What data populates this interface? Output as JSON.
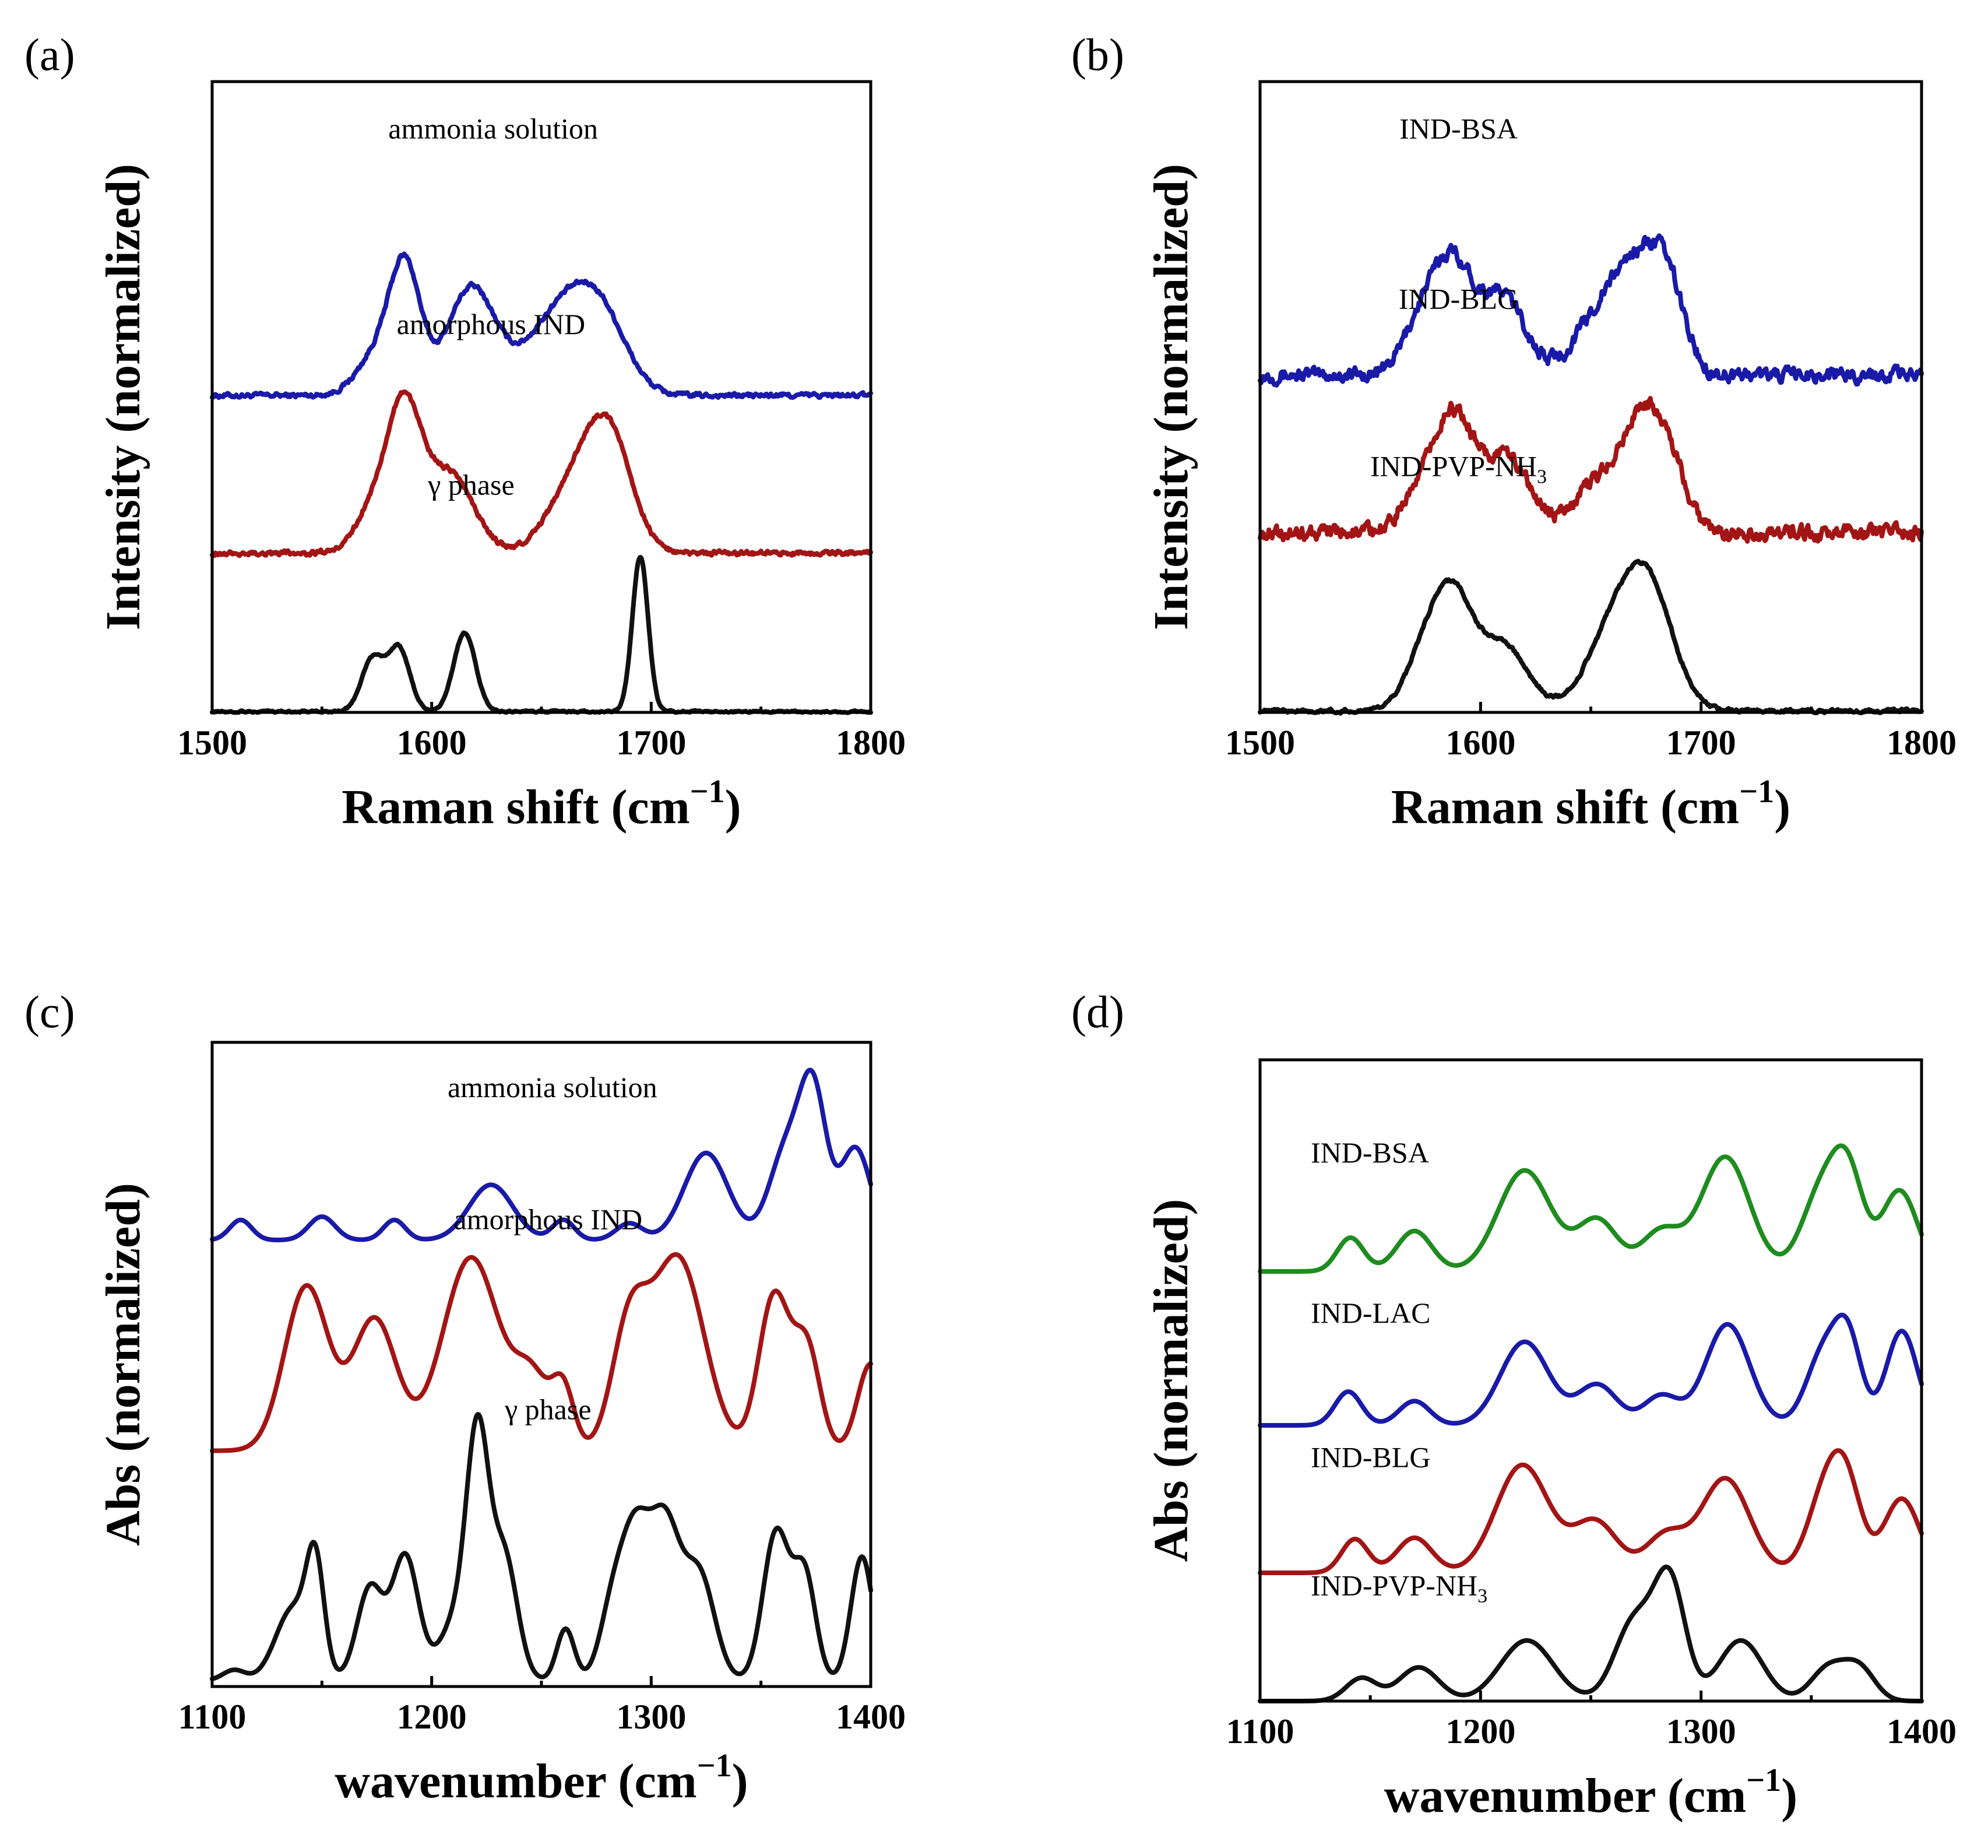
{
  "chart_data": [
    {
      "panel": "(a)",
      "type": "line",
      "xlabel": "Raman shift (cm",
      "xlabel_sup": "−1",
      "xlabel_close": ")",
      "ylabel": "Intensity (normalized)",
      "xlim": [
        1500,
        1800
      ],
      "xticks": [
        "1500",
        "1600",
        "1700",
        "1800"
      ],
      "xtick_values": [
        1500,
        1600,
        1700,
        1800
      ],
      "ylim": [
        0,
        1.0
      ],
      "series": [
        {
          "name": "ammonia solution",
          "color": "#1a1aa8",
          "offset": 0.5,
          "scale": 0.25,
          "noise": 0.004,
          "label_x": 1628,
          "label_y": 0.91,
          "baseline": 0.01,
          "peaks": [
            [
              1588,
              0.78,
              7
            ],
            [
              1575,
              0.25,
              9
            ],
            [
              1618,
              0.68,
              11
            ],
            [
              1658,
              0.5,
              15
            ],
            [
              1677,
              0.42,
              12
            ]
          ]
        },
        {
          "name": "amorphous IND",
          "color": "#a31515",
          "offset": 0.25,
          "scale": 0.25,
          "noise": 0.004,
          "label_x": 1627,
          "label_y": 0.6,
          "baseline": 0.01,
          "peaks": [
            [
              1587,
              0.9,
              8
            ],
            [
              1572,
              0.22,
              8
            ],
            [
              1608,
              0.5,
              11
            ],
            [
              1668,
              0.5,
              13
            ],
            [
              1682,
              0.55,
              10
            ]
          ]
        },
        {
          "name": "γ phase",
          "color": "#111111",
          "offset": 0.0,
          "scale": 0.25,
          "noise": 0.0015,
          "label_x": 1618,
          "label_y": 0.345,
          "baseline": 0.005,
          "peaks": [
            [
              1573,
              0.33,
              5
            ],
            [
              1585,
              0.4,
              5
            ],
            [
              1615,
              0.5,
              5
            ],
            [
              1695,
              0.98,
              3.6
            ]
          ]
        }
      ]
    },
    {
      "panel": "(b)",
      "type": "line",
      "xlabel": "Raman shift (cm",
      "xlabel_sup": "−1",
      "xlabel_close": ")",
      "ylabel": "Intensity (normalized)",
      "xlim": [
        1500,
        1800
      ],
      "xticks": [
        "1500",
        "1600",
        "1700",
        "1800"
      ],
      "xtick_values": [
        1500,
        1600,
        1700,
        1800
      ],
      "ylim": [
        0,
        1.0
      ],
      "series": [
        {
          "name": "IND-BSA",
          "color": "#1a1aa8",
          "offset": 0.52,
          "scale": 0.25,
          "noise": 0.012,
          "label_x": 1590,
          "label_y": 0.91,
          "baseline": 0.06,
          "peaks": [
            [
              1587,
              0.7,
              9
            ],
            [
              1572,
              0.28,
              8
            ],
            [
              1610,
              0.5,
              10
            ],
            [
              1655,
              0.38,
              12
            ],
            [
              1672,
              0.55,
              10
            ],
            [
              1685,
              0.48,
              8
            ]
          ]
        },
        {
          "name": "IND-BLG",
          "color": "#a31515",
          "offset": 0.27,
          "scale": 0.25,
          "noise": 0.012,
          "label_x": 1590,
          "label_y": 0.64,
          "baseline": 0.06,
          "peaks": [
            [
              1588,
              0.72,
              9
            ],
            [
              1572,
              0.25,
              8
            ],
            [
              1612,
              0.48,
              10
            ],
            [
              1655,
              0.33,
              12
            ],
            [
              1674,
              0.6,
              9
            ],
            [
              1686,
              0.35,
              8
            ]
          ]
        },
        {
          "name": "IND-PVP-NH",
          "name_sub": "3",
          "color": "#111111",
          "offset": 0.0,
          "scale": 0.25,
          "noise": 0.003,
          "label_x": 1590,
          "label_y": 0.375,
          "baseline": 0.01,
          "peaks": [
            [
              1587,
              0.72,
              9
            ],
            [
              1573,
              0.28,
              8
            ],
            [
              1610,
              0.42,
              11
            ],
            [
              1662,
              0.52,
              13
            ],
            [
              1677,
              0.62,
              11
            ]
          ]
        }
      ]
    },
    {
      "panel": "(c)",
      "type": "line",
      "xlabel": "wavenumber (cm",
      "xlabel_sup": "−1",
      "xlabel_close": ")",
      "ylabel": "Abs (normalized)",
      "xlim": [
        1100,
        1400
      ],
      "xticks": [
        "1100",
        "1200",
        "1300",
        "1400"
      ],
      "xtick_values": [
        1100,
        1200,
        1300,
        1400
      ],
      "ylim": [
        0,
        1.0
      ],
      "series": [
        {
          "name": "ammonia solution",
          "color": "#1a1aa8",
          "offset": 0.68,
          "scale": 0.26,
          "noise": 0.0,
          "label_x": 1255,
          "label_y": 0.915,
          "baseline": 0.05,
          "peaks": [
            [
              1113,
              0.12,
              5
            ],
            [
              1150,
              0.14,
              6
            ],
            [
              1183,
              0.12,
              5
            ],
            [
              1227,
              0.33,
              10
            ],
            [
              1260,
              0.12,
              5
            ],
            [
              1290,
              0.1,
              6
            ],
            [
              1325,
              0.52,
              10
            ],
            [
              1362,
              0.55,
              8
            ],
            [
              1374,
              0.8,
              6
            ],
            [
              1393,
              0.55,
              7
            ]
          ]
        },
        {
          "name": "amorphous IND",
          "color": "#a31515",
          "offset": 0.36,
          "scale": 0.3,
          "noise": 0.0,
          "label_x": 1253,
          "label_y": 0.71,
          "baseline": 0.02,
          "peaks": [
            [
              1143,
              0.85,
              10
            ],
            [
              1174,
              0.68,
              10
            ],
            [
              1218,
              1.0,
              13
            ],
            [
              1246,
              0.35,
              8
            ],
            [
              1260,
              0.3,
              5
            ],
            [
              1290,
              0.6,
              8
            ],
            [
              1312,
              1.0,
              12
            ],
            [
              1356,
              0.8,
              7
            ],
            [
              1371,
              0.52,
              6
            ],
            [
              1400,
              0.45,
              6
            ]
          ]
        },
        {
          "name": "γ phase",
          "color": "#111111",
          "offset": 0.0,
          "scale": 0.32,
          "noise": 0.0,
          "label_x": 1253,
          "label_y": 0.415,
          "baseline": 0.03,
          "peaks": [
            [
              1110,
              0.05,
              5
            ],
            [
              1137,
              0.35,
              8
            ],
            [
              1147,
              0.5,
              4
            ],
            [
              1172,
              0.45,
              6
            ],
            [
              1188,
              0.6,
              6
            ],
            [
              1212,
              0.3,
              8
            ],
            [
              1221,
              1.05,
              5
            ],
            [
              1233,
              0.6,
              6
            ],
            [
              1261,
              0.25,
              4
            ],
            [
              1283,
              0.38,
              6
            ],
            [
              1293,
              0.6,
              6
            ],
            [
              1306,
              0.75,
              7
            ],
            [
              1322,
              0.5,
              7
            ],
            [
              1357,
              0.72,
              6
            ],
            [
              1370,
              0.5,
              5
            ],
            [
              1396,
              0.6,
              5
            ]
          ]
        }
      ]
    },
    {
      "panel": "(d)",
      "type": "line",
      "xlabel": "wavenumber (cm",
      "xlabel_sup": "−1",
      "xlabel_close": ")",
      "ylabel": "Abs (normalized)",
      "xlim": [
        1100,
        1400
      ],
      "xticks": [
        "1100",
        "1200",
        "1300",
        "1400"
      ],
      "xtick_values": [
        1100,
        1200,
        1300,
        1400
      ],
      "ylim": [
        0,
        1.0
      ],
      "series": [
        {
          "name": "IND-BSA",
          "color": "#1e8c1e",
          "offset": 0.67,
          "scale": 0.21,
          "noise": 0.0,
          "label_x": 1123,
          "label_y": 0.84,
          "baseline": 0.0,
          "peaks": [
            [
              1141,
              0.25,
              6
            ],
            [
              1170,
              0.3,
              8
            ],
            [
              1220,
              0.75,
              12
            ],
            [
              1253,
              0.38,
              9
            ],
            [
              1282,
              0.3,
              9
            ],
            [
              1311,
              0.85,
              11
            ],
            [
              1355,
              0.6,
              9
            ],
            [
              1367,
              0.62,
              7
            ],
            [
              1390,
              0.6,
              8
            ]
          ]
        },
        {
          "name": "IND-LAC",
          "color": "#1a1aa8",
          "offset": 0.43,
          "scale": 0.21,
          "noise": 0.0,
          "label_x": 1123,
          "label_y": 0.59,
          "baseline": 0.0,
          "peaks": [
            [
              1140,
              0.25,
              6
            ],
            [
              1170,
              0.18,
              7
            ],
            [
              1220,
              0.62,
              11
            ],
            [
              1253,
              0.3,
              9
            ],
            [
              1282,
              0.22,
              8
            ],
            [
              1312,
              0.75,
              10
            ],
            [
              1356,
              0.55,
              8
            ],
            [
              1367,
              0.55,
              6
            ],
            [
              1391,
              0.7,
              7
            ]
          ]
        },
        {
          "name": "IND-BLG",
          "color": "#a31515",
          "offset": 0.2,
          "scale": 0.21,
          "noise": 0.0,
          "label_x": 1123,
          "label_y": 0.365,
          "baseline": 0.0,
          "peaks": [
            [
              1143,
              0.25,
              6
            ],
            [
              1170,
              0.26,
              8
            ],
            [
              1219,
              0.8,
              12
            ],
            [
              1252,
              0.38,
              10
            ],
            [
              1284,
              0.28,
              9
            ],
            [
              1311,
              0.7,
              11
            ],
            [
              1356,
              0.55,
              8
            ],
            [
              1366,
              0.58,
              7
            ],
            [
              1391,
              0.55,
              8
            ]
          ]
        },
        {
          "name": "IND-PVP-NH",
          "name_sub": "3",
          "color": "#111111",
          "offset": 0.0,
          "scale": 0.21,
          "noise": 0.0,
          "label_x": 1123,
          "label_y": 0.165,
          "baseline": 0.0,
          "peaks": [
            [
              1146,
              0.17,
              7
            ],
            [
              1172,
              0.25,
              9
            ],
            [
              1221,
              0.45,
              12
            ],
            [
              1270,
              0.6,
              9
            ],
            [
              1286,
              0.85,
              7
            ],
            [
              1318,
              0.45,
              10
            ],
            [
              1358,
              0.25,
              8
            ],
            [
              1372,
              0.23,
              7
            ]
          ]
        }
      ]
    }
  ]
}
